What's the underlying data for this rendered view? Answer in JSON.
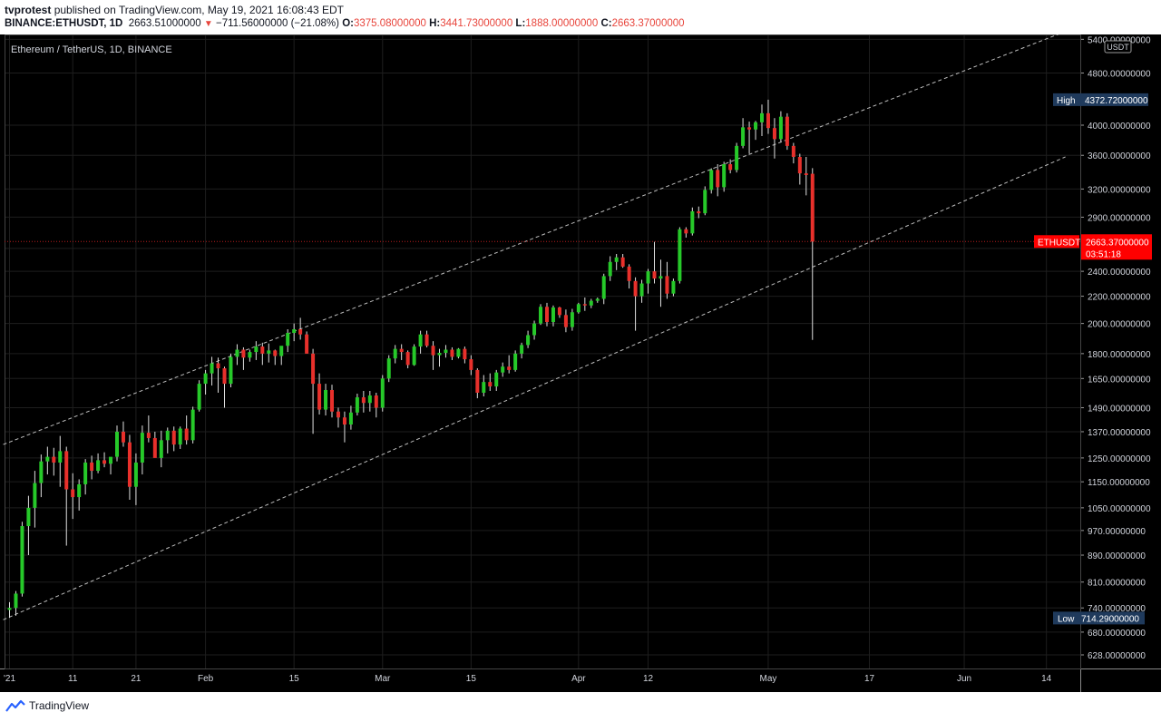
{
  "header": {
    "publisher": "tvprotest",
    "published_text": "published on TradingView.com, May 19, 2021 16:08:43 EDT",
    "symbol": "BINANCE:ETHUSDT, 1D",
    "last": "2663.51000000",
    "change": "−711.56000000 (−21.08%)",
    "o_label": "O:",
    "o": "3375.08000000",
    "h_label": "H:",
    "h": "3441.73000000",
    "l_label": "L:",
    "l": "1888.00000000",
    "c_label": "C:",
    "c": "2663.37000000"
  },
  "footer": {
    "brand": "TradingView"
  },
  "colors": {
    "up": "#26c929",
    "down": "#e8302b",
    "background": "#000000",
    "grid": "#1e1e1e",
    "channel": "#bdbdbd",
    "price_tag": "#ff0000",
    "high_low_tag": "#1f3a5c"
  },
  "chart_data": {
    "type": "candlestick",
    "title": "Ethereum / TetherUS, 1D, BINANCE",
    "currency": "USDT",
    "y_scale": "log",
    "ylim": [
      590,
      5500
    ],
    "y_ticks": [
      5400,
      4800,
      4000,
      3600,
      3200,
      2900,
      2600,
      2400,
      2200,
      2000,
      1800,
      1650,
      1490,
      1370,
      1250,
      1150,
      1050,
      970,
      890,
      810,
      740,
      680,
      628
    ],
    "y_tick_labels": [
      "5400.00000000",
      "4800.00000000",
      "4000.00000000",
      "3600.00000000",
      "3200.00000000",
      "2900.00000000",
      "2600.00000000",
      "2400.00000000",
      "2200.00000000",
      "2000.00000000",
      "1800.00000000",
      "1650.00000000",
      "1490.00000000",
      "1370.00000000",
      "1250.00000000",
      "1150.00000000",
      "1050.00000000",
      "970.00000000",
      "890.00000000",
      "810.00000000",
      "740.00000000",
      "680.00000000",
      "628.00000000"
    ],
    "x_ticks": [
      {
        "label": "'21",
        "date": "2021-01-01"
      },
      {
        "label": "11",
        "date": "2021-01-11"
      },
      {
        "label": "21",
        "date": "2021-01-21"
      },
      {
        "label": "Feb",
        "date": "2021-02-01"
      },
      {
        "label": "15",
        "date": "2021-02-15"
      },
      {
        "label": "Mar",
        "date": "2021-03-01"
      },
      {
        "label": "15",
        "date": "2021-03-15"
      },
      {
        "label": "Apr",
        "date": "2021-04-01"
      },
      {
        "label": "12",
        "date": "2021-04-12"
      },
      {
        "label": "May",
        "date": "2021-05-01"
      },
      {
        "label": "17",
        "date": "2021-05-17"
      },
      {
        "label": "Jun",
        "date": "2021-06-01"
      },
      {
        "label": "14",
        "date": "2021-06-14"
      }
    ],
    "candles": [
      [
        735,
        755,
        715,
        740
      ],
      [
        740,
        785,
        720,
        778
      ],
      [
        778,
        1000,
        770,
        985
      ],
      [
        985,
        1095,
        890,
        1050
      ],
      [
        1050,
        1195,
        980,
        1145
      ],
      [
        1145,
        1265,
        1090,
        1235
      ],
      [
        1235,
        1300,
        1180,
        1255
      ],
      [
        1255,
        1295,
        1175,
        1230
      ],
      [
        1230,
        1350,
        1130,
        1280
      ],
      [
        1280,
        1300,
        920,
        1120
      ],
      [
        1120,
        1185,
        1010,
        1090
      ],
      [
        1090,
        1160,
        1040,
        1140
      ],
      [
        1140,
        1245,
        1100,
        1230
      ],
      [
        1230,
        1260,
        1160,
        1195
      ],
      [
        1195,
        1270,
        1185,
        1240
      ],
      [
        1240,
        1275,
        1210,
        1225
      ],
      [
        1225,
        1245,
        1180,
        1255
      ],
      [
        1255,
        1400,
        1235,
        1370
      ],
      [
        1370,
        1420,
        1300,
        1320
      ],
      [
        1320,
        1355,
        1080,
        1130
      ],
      [
        1130,
        1270,
        1060,
        1230
      ],
      [
        1230,
        1400,
        1180,
        1365
      ],
      [
        1365,
        1450,
        1320,
        1340
      ],
      [
        1340,
        1370,
        1260,
        1250
      ],
      [
        1250,
        1375,
        1210,
        1330
      ],
      [
        1330,
        1390,
        1270,
        1375
      ],
      [
        1375,
        1395,
        1280,
        1310
      ],
      [
        1310,
        1395,
        1290,
        1385
      ],
      [
        1385,
        1450,
        1310,
        1330
      ],
      [
        1330,
        1495,
        1315,
        1480
      ],
      [
        1480,
        1640,
        1470,
        1620
      ],
      [
        1620,
        1700,
        1560,
        1680
      ],
      [
        1680,
        1780,
        1610,
        1740
      ],
      [
        1740,
        1775,
        1570,
        1710
      ],
      [
        1710,
        1720,
        1490,
        1620
      ],
      [
        1620,
        1800,
        1600,
        1780
      ],
      [
        1780,
        1860,
        1730,
        1825
      ],
      [
        1825,
        1840,
        1700,
        1775
      ],
      [
        1775,
        1825,
        1750,
        1810
      ],
      [
        1810,
        1880,
        1760,
        1845
      ],
      [
        1845,
        1870,
        1730,
        1800
      ],
      [
        1800,
        1865,
        1745,
        1820
      ],
      [
        1820,
        1825,
        1730,
        1785
      ],
      [
        1785,
        1830,
        1730,
        1850
      ],
      [
        1850,
        1960,
        1810,
        1935
      ],
      [
        1935,
        2000,
        1880,
        1960
      ],
      [
        1960,
        2040,
        1890,
        1925
      ],
      [
        1925,
        1945,
        1800,
        1800
      ],
      [
        1800,
        1830,
        1360,
        1620
      ],
      [
        1620,
        1680,
        1455,
        1480
      ],
      [
        1480,
        1620,
        1450,
        1585
      ],
      [
        1585,
        1615,
        1440,
        1470
      ],
      [
        1470,
        1490,
        1390,
        1440
      ],
      [
        1440,
        1470,
        1320,
        1405
      ],
      [
        1405,
        1500,
        1380,
        1465
      ],
      [
        1465,
        1565,
        1450,
        1545
      ],
      [
        1545,
        1580,
        1465,
        1515
      ],
      [
        1515,
        1580,
        1470,
        1555
      ],
      [
        1555,
        1570,
        1440,
        1490
      ],
      [
        1490,
        1670,
        1470,
        1650
      ],
      [
        1650,
        1790,
        1630,
        1770
      ],
      [
        1770,
        1855,
        1740,
        1830
      ],
      [
        1830,
        1860,
        1760,
        1810
      ],
      [
        1810,
        1820,
        1710,
        1730
      ],
      [
        1730,
        1860,
        1725,
        1845
      ],
      [
        1845,
        1950,
        1800,
        1925
      ],
      [
        1925,
        1950,
        1840,
        1850
      ],
      [
        1850,
        1880,
        1700,
        1790
      ],
      [
        1790,
        1830,
        1720,
        1805
      ],
      [
        1805,
        1855,
        1775,
        1825
      ],
      [
        1825,
        1840,
        1760,
        1780
      ],
      [
        1780,
        1835,
        1770,
        1830
      ],
      [
        1830,
        1845,
        1740,
        1765
      ],
      [
        1765,
        1790,
        1670,
        1700
      ],
      [
        1700,
        1710,
        1540,
        1570
      ],
      [
        1570,
        1670,
        1550,
        1630
      ],
      [
        1630,
        1680,
        1580,
        1605
      ],
      [
        1605,
        1700,
        1580,
        1685
      ],
      [
        1685,
        1745,
        1660,
        1720
      ],
      [
        1720,
        1790,
        1680,
        1700
      ],
      [
        1700,
        1820,
        1690,
        1800
      ],
      [
        1800,
        1870,
        1770,
        1855
      ],
      [
        1855,
        1950,
        1835,
        1920
      ],
      [
        1920,
        2020,
        1890,
        2000
      ],
      [
        2000,
        2140,
        1990,
        2120
      ],
      [
        2120,
        2150,
        1980,
        2010
      ],
      [
        2010,
        2130,
        1980,
        2115
      ],
      [
        2115,
        2120,
        2040,
        2060
      ],
      [
        2060,
        2100,
        1940,
        1975
      ],
      [
        1975,
        2105,
        1950,
        2080
      ],
      [
        2080,
        2150,
        2070,
        2140
      ],
      [
        2140,
        2190,
        2090,
        2130
      ],
      [
        2130,
        2180,
        2110,
        2165
      ],
      [
        2165,
        2190,
        2150,
        2180
      ],
      [
        2180,
        2380,
        2140,
        2360
      ],
      [
        2360,
        2530,
        2320,
        2480
      ],
      [
        2480,
        2550,
        2410,
        2520
      ],
      [
        2520,
        2550,
        2430,
        2440
      ],
      [
        2440,
        2460,
        2260,
        2320
      ],
      [
        2320,
        2350,
        1950,
        2200
      ],
      [
        2200,
        2330,
        2150,
        2300
      ],
      [
        2300,
        2420,
        2220,
        2400
      ],
      [
        2400,
        2660,
        2300,
        2340
      ],
      [
        2340,
        2500,
        2120,
        2360
      ],
      [
        2360,
        2480,
        2180,
        2220
      ],
      [
        2220,
        2340,
        2200,
        2320
      ],
      [
        2320,
        2800,
        2300,
        2780
      ],
      [
        2780,
        2800,
        2700,
        2740
      ],
      [
        2740,
        3000,
        2720,
        2960
      ],
      [
        2960,
        3010,
        2890,
        2940
      ],
      [
        2940,
        3230,
        2920,
        3190
      ],
      [
        3190,
        3440,
        3150,
        3420
      ],
      [
        3420,
        3490,
        3120,
        3220
      ],
      [
        3220,
        3520,
        3170,
        3490
      ],
      [
        3490,
        3550,
        3380,
        3420
      ],
      [
        3420,
        3760,
        3390,
        3720
      ],
      [
        3720,
        4100,
        3690,
        3970
      ],
      [
        3970,
        4050,
        3620,
        3940
      ],
      [
        3940,
        4060,
        3800,
        4040
      ],
      [
        4040,
        4300,
        3850,
        4170
      ],
      [
        4170,
        4373,
        3880,
        3960
      ],
      [
        3960,
        4100,
        3560,
        3810
      ],
      [
        3810,
        4200,
        3770,
        4120
      ],
      [
        4120,
        4170,
        3670,
        3720
      ],
      [
        3720,
        3760,
        3500,
        3580
      ],
      [
        3580,
        3620,
        3250,
        3380
      ],
      [
        3380,
        3580,
        3130,
        3360
      ],
      [
        3375,
        3442,
        1888,
        2663
      ]
    ],
    "channel": {
      "upper": [
        [
          "2020-12-31",
          1310
        ],
        [
          "2021-06-17",
          5550
        ]
      ],
      "lower": [
        [
          "2020-12-31",
          710
        ],
        [
          "2021-06-17",
          3580
        ]
      ]
    },
    "high_label": "High",
    "high_value": "4372.72000000",
    "low_label": "Low",
    "low_value": "714.29000000",
    "last_symbol": "ETHUSDT",
    "last_value": "2663.37000000",
    "last_countdown": "03:51:18"
  }
}
